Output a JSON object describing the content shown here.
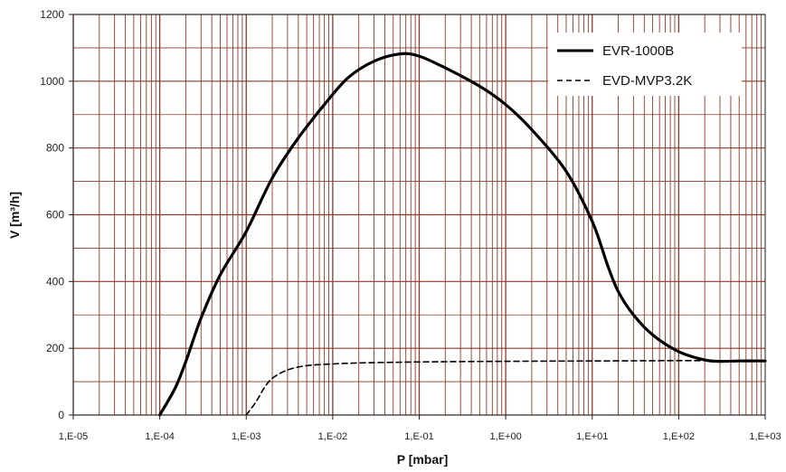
{
  "chart_data": {
    "type": "line",
    "xscale": "log",
    "xlabel": "P [mbar]",
    "ylabel": "V [m³/h]",
    "xlim": [
      1e-05,
      1000
    ],
    "ylim": [
      0,
      1200
    ],
    "grid": true,
    "legend": "top-right",
    "x_ticks": [
      {
        "value": 1e-05,
        "label": "1,E-05"
      },
      {
        "value": 0.0001,
        "label": "1,E-04"
      },
      {
        "value": 0.001,
        "label": "1,E-03"
      },
      {
        "value": 0.01,
        "label": "1,E-02"
      },
      {
        "value": 0.1,
        "label": "1,E-01"
      },
      {
        "value": 1,
        "label": "1,E+00"
      },
      {
        "value": 10,
        "label": "1,E+01"
      },
      {
        "value": 100,
        "label": "1,E+02"
      },
      {
        "value": 1000,
        "label": "1,E+03"
      }
    ],
    "y_ticks": [
      0,
      200,
      400,
      600,
      800,
      1000,
      1200
    ],
    "colors": {
      "grid": "#8b3a2a",
      "line": "#000000"
    },
    "series": [
      {
        "name": "EVR-1000B",
        "style": "solid",
        "x": [
          0.0001,
          0.00015,
          0.0002,
          0.0003,
          0.0005,
          0.001,
          0.002,
          0.004,
          0.008,
          0.015,
          0.03,
          0.06,
          0.1,
          0.2,
          0.5,
          1,
          2,
          5,
          10,
          15,
          20,
          30,
          50,
          100,
          200,
          300,
          500,
          1000
        ],
        "y": [
          0,
          80,
          160,
          290,
          420,
          550,
          710,
          830,
          930,
          1010,
          1060,
          1082,
          1075,
          1040,
          985,
          930,
          855,
          730,
          580,
          450,
          370,
          300,
          240,
          190,
          165,
          161,
          162,
          162
        ]
      },
      {
        "name": "EVD-MVP3.2K",
        "style": "dashed",
        "x": [
          0.001,
          0.0013,
          0.0016,
          0.002,
          0.003,
          0.005,
          0.01,
          0.02,
          0.05,
          0.1,
          1,
          10,
          100,
          1000
        ],
        "y": [
          0,
          40,
          80,
          110,
          135,
          148,
          153,
          156,
          158,
          159,
          161,
          162,
          163,
          163
        ]
      }
    ]
  }
}
